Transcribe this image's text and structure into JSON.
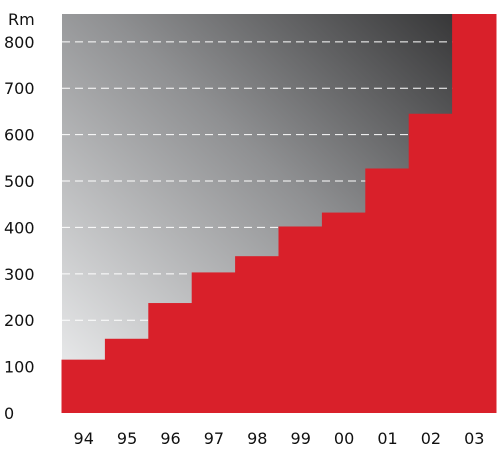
{
  "chart_data": {
    "type": "bar",
    "categories": [
      "94",
      "95",
      "96",
      "97",
      "98",
      "99",
      "00",
      "01",
      "02",
      "03"
    ],
    "values": [
      115,
      160,
      237,
      303,
      338,
      402,
      432,
      527,
      645,
      860
    ],
    "ylabel": "Rm",
    "yticks": [
      0,
      100,
      200,
      300,
      400,
      500,
      600,
      700,
      800
    ],
    "ylim": [
      0,
      860
    ],
    "grid": true,
    "colors": {
      "bar": "#d9202a",
      "background_light": "#f2f3f4",
      "background_dark": "#2c2c2d",
      "gridline": "#ffffff"
    }
  }
}
